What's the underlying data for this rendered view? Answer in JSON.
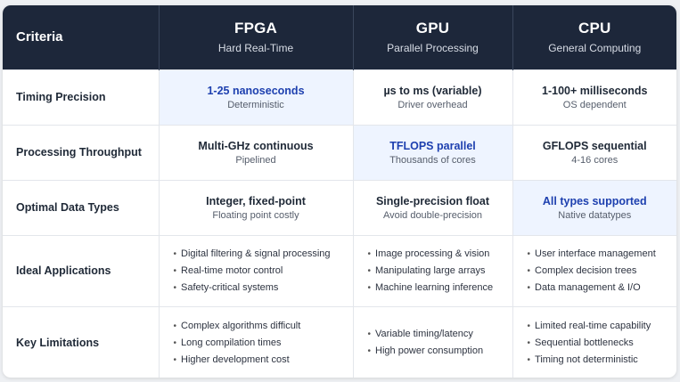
{
  "header": {
    "criteria_label": "Criteria",
    "columns": [
      {
        "name": "FPGA",
        "sub": "Hard Real-Time"
      },
      {
        "name": "GPU",
        "sub": "Parallel Processing"
      },
      {
        "name": "CPU",
        "sub": "General Computing"
      }
    ]
  },
  "rows": [
    {
      "label": "Timing Precision",
      "cells": [
        {
          "main": "1-25 nanoseconds",
          "sub": "Deterministic",
          "highlight": true
        },
        {
          "main": "µs to ms (variable)",
          "sub": "Driver overhead",
          "highlight": false
        },
        {
          "main": "1-100+ milliseconds",
          "sub": "OS dependent",
          "highlight": false
        }
      ]
    },
    {
      "label": "Processing Throughput",
      "cells": [
        {
          "main": "Multi-GHz continuous",
          "sub": "Pipelined",
          "highlight": false
        },
        {
          "main": "TFLOPS parallel",
          "sub": "Thousands of cores",
          "highlight": true
        },
        {
          "main": "GFLOPS sequential",
          "sub": "4-16 cores",
          "highlight": false
        }
      ]
    },
    {
      "label": "Optimal Data Types",
      "cells": [
        {
          "main": "Integer, fixed-point",
          "sub": "Floating point costly",
          "highlight": false
        },
        {
          "main": "Single-precision float",
          "sub": "Avoid double-precision",
          "highlight": false
        },
        {
          "main": "All types supported",
          "sub": "Native datatypes",
          "highlight": true
        }
      ]
    },
    {
      "label": "Ideal Applications",
      "lists": [
        [
          "Digital filtering & signal processing",
          "Real-time motor control",
          "Safety-critical systems"
        ],
        [
          "Image processing & vision",
          "Manipulating large arrays",
          "Machine learning inference"
        ],
        [
          "User interface management",
          "Complex decision trees",
          "Data management & I/O"
        ]
      ]
    },
    {
      "label": "Key Limitations",
      "lists": [
        [
          "Complex algorithms difficult",
          "Long compilation times",
          "Higher development cost"
        ],
        [
          "Variable timing/latency",
          "High power consumption"
        ],
        [
          "Limited real-time capability",
          "Sequential bottlenecks",
          "Timing not deterministic"
        ]
      ]
    }
  ]
}
